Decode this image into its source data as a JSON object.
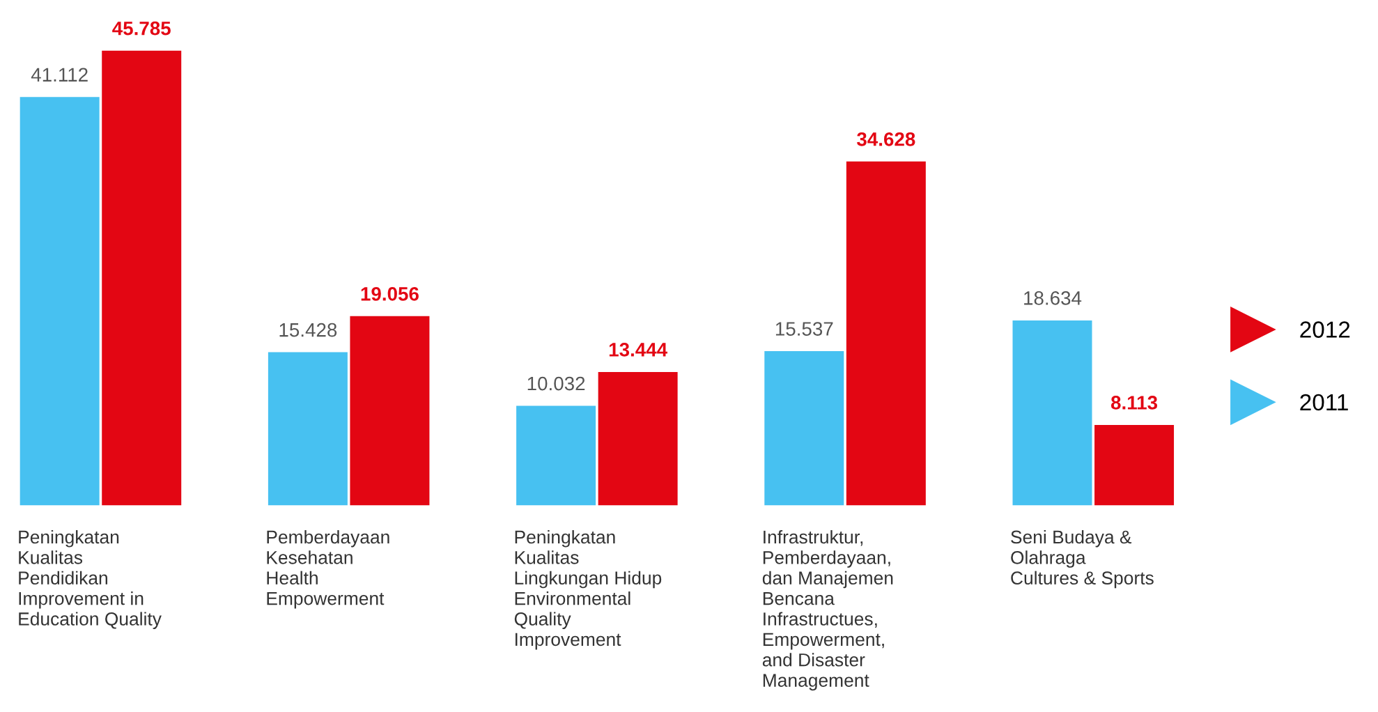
{
  "chart_data": {
    "type": "bar",
    "categories": [
      "Peningkatan\nKualitas\nPendidikan\nImprovement in\nEducation Quality",
      "Pemberdayaan\nKesehatan\nHealth\nEmpowerment",
      "Peningkatan\nKualitas\nLingkungan Hidup\nEnvironmental\nQuality\nImprovement",
      "Infrastruktur,\nPemberdayaan,\ndan Manajemen\nBencana\nInfrastructues,\nEmpowerment,\nand Disaster\nManagement",
      "Seni Budaya &\nOlahraga\nCultures & Sports"
    ],
    "series": [
      {
        "name": "2011",
        "color": "#47c1f1",
        "values": [
          41.112,
          15.428,
          10.032,
          15.537,
          18.634
        ]
      },
      {
        "name": "2012",
        "color": "#e30613",
        "values": [
          45.785,
          19.056,
          13.444,
          34.628,
          8.113
        ]
      }
    ],
    "data_labels": true,
    "legend": "right"
  }
}
